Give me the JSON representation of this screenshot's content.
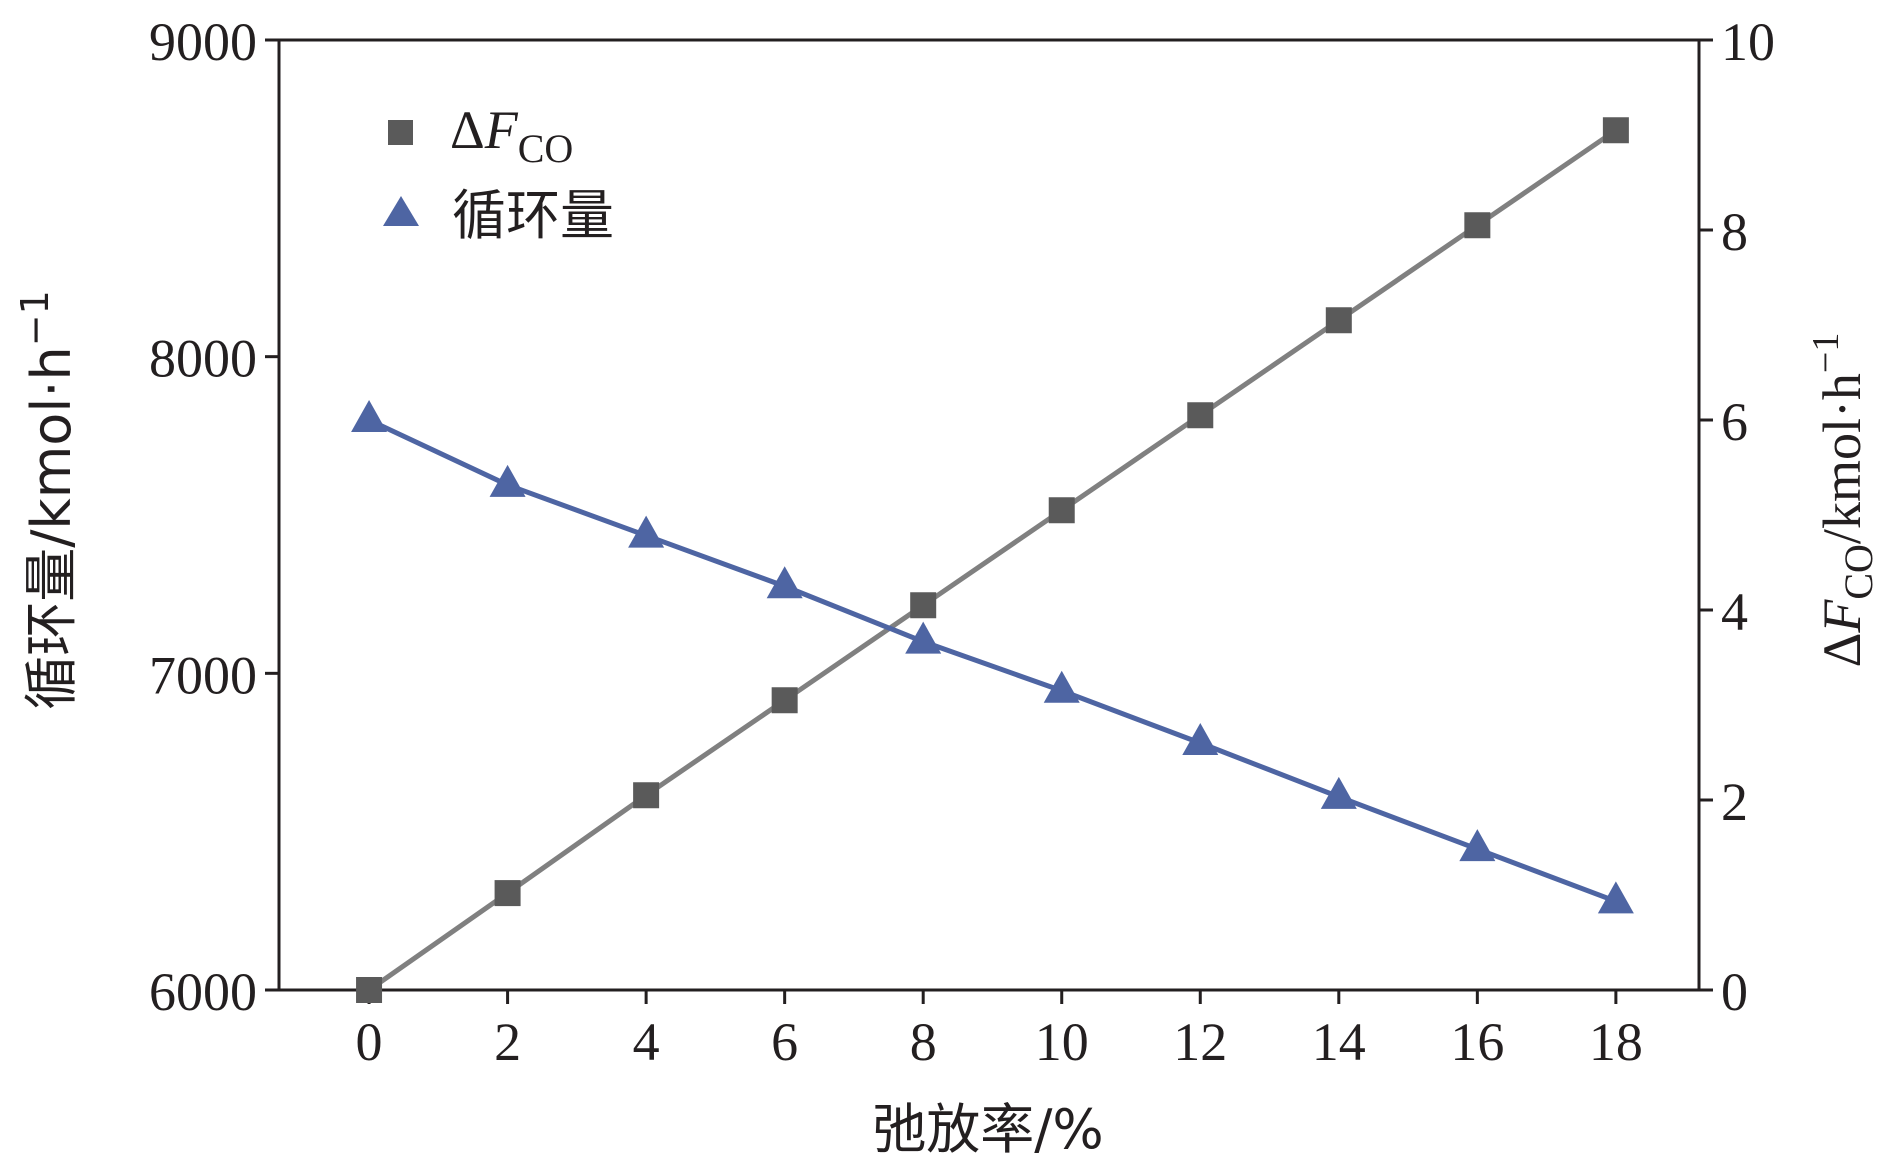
{
  "chart_data": {
    "type": "line",
    "x": [
      0,
      2,
      4,
      6,
      8,
      10,
      12,
      14,
      16,
      18
    ],
    "xlim": [
      -1.3,
      19.2
    ],
    "xticks": [
      "0",
      "2",
      "4",
      "6",
      "8",
      "10",
      "12",
      "14",
      "16",
      "18"
    ],
    "xlabel": "弛放率/%",
    "left_axis": {
      "ylim": [
        6000,
        9000
      ],
      "ticks": [
        "6000",
        "7000",
        "8000",
        "9000"
      ],
      "label_main": "循环量/kmol·h",
      "label_sup": "−1"
    },
    "right_axis": {
      "ylim": [
        0,
        10
      ],
      "ticks": [
        "0",
        "2",
        "4",
        "6",
        "8",
        "10"
      ],
      "label_delta": "Δ",
      "label_F": "F",
      "label_sub": "CO",
      "label_rest": "/kmol·h",
      "label_sup": "−1"
    },
    "series": [
      {
        "legend_delta": "Δ",
        "legend_F": "F",
        "legend_sub": "CO",
        "axis": "right",
        "marker": "square",
        "color": "#808080",
        "marker_color": "#5a5a5a",
        "values": [
          0,
          1.02,
          2.05,
          3.05,
          4.05,
          5.05,
          6.05,
          7.05,
          8.05,
          9.05
        ]
      },
      {
        "legend": "循环量",
        "axis": "left",
        "marker": "triangle",
        "color": "#4e65a3",
        "marker_color": "#4e65a3",
        "values": [
          7800,
          7595,
          7435,
          7275,
          7100,
          6945,
          6780,
          6610,
          6445,
          6280
        ]
      }
    ],
    "legend_position": "top-left",
    "grid": false
  }
}
